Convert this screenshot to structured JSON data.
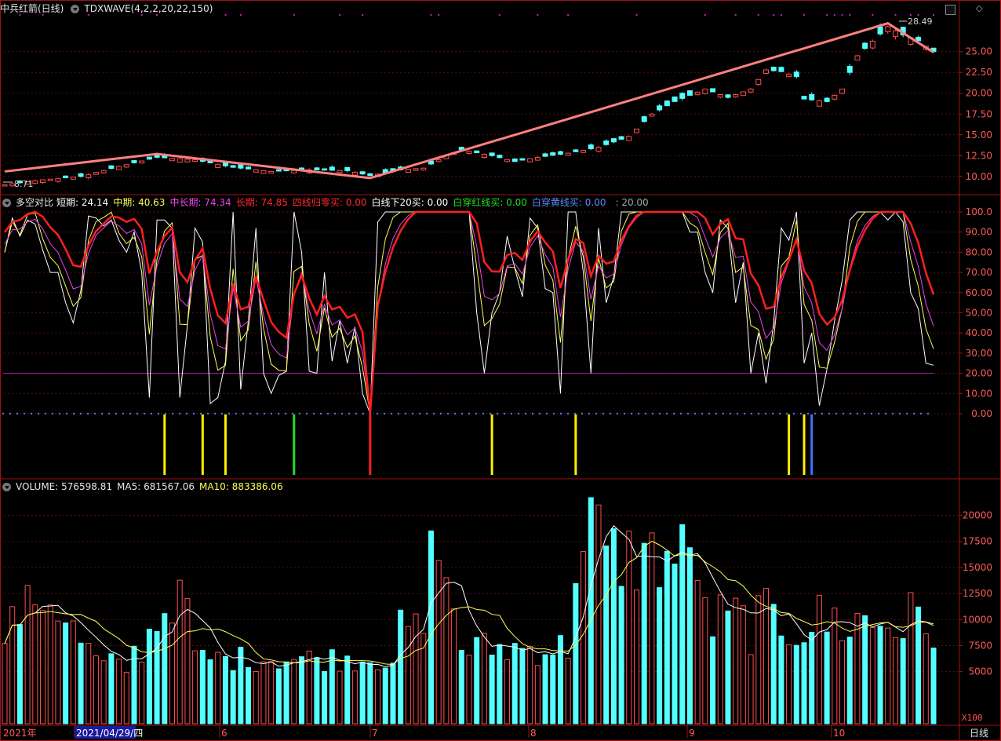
{
  "colors": {
    "bg": "#000000",
    "frame": "#a11212",
    "grid": "#5a0e0e",
    "up": "#ff4d4d",
    "down": "#54ffff",
    "zigzag": "#ff8080",
    "white_line": "#ffffff",
    "yellow_line": "#ffff55",
    "magenta_line": "#ee44ee",
    "red_line": "#ff1f1f",
    "guide_line": "#b01eb0",
    "dots": "#5577ff",
    "signal_yellow": "#ffee00",
    "signal_green": "#22dd22",
    "signal_red": "#ff2020",
    "signal_blue": "#3a78ff"
  },
  "price_panel": {
    "title": "中兵红箭(日线)",
    "indicator": "TDXWAVE(4,2,2,20,22,150)",
    "high_label": "28.49",
    "low_label": "8.71",
    "axis_ticks": [
      "25.00",
      "22.50",
      "20.00",
      "17.50",
      "15.00",
      "12.50",
      "10.00"
    ]
  },
  "osc_panel": {
    "title": "多空对比",
    "labels": [
      {
        "name": "短期",
        "value": "24.14",
        "color": "#ffffff"
      },
      {
        "name": "中期",
        "value": "40.63",
        "color": "#ffff55"
      },
      {
        "name": "中长期",
        "value": "74.34",
        "color": "#ee44ee"
      },
      {
        "name": "长期",
        "value": "74.85",
        "color": "#ff2a2a"
      },
      {
        "name": "四线归零买",
        "value": "0.00",
        "color": "#ff2a2a"
      },
      {
        "name": "白线下20买",
        "value": "0.00",
        "color": "#ffffff"
      },
      {
        "name": "白穿红线买",
        "value": "0.00",
        "color": "#22dd22"
      },
      {
        "name": "白穿黄线买",
        "value": "0.00",
        "color": "#5a8cff"
      }
    ],
    "extra": ": 20.00",
    "axis_ticks": [
      "100.0",
      "90.00",
      "80.00",
      "70.00",
      "60.00",
      "50.00",
      "40.00",
      "30.00",
      "20.00",
      "10.00",
      "0.00"
    ]
  },
  "vol_panel": {
    "title": "VOLUME",
    "volume": "576598.81",
    "ma5_label": "MA5",
    "ma5": "681567.06",
    "ma10_label": "MA10",
    "ma10": "883386.06",
    "axis_ticks": [
      "20000",
      "17500",
      "15000",
      "12500",
      "10000",
      "7500",
      "5000"
    ],
    "unit": "X100"
  },
  "x_axis": {
    "labels": [
      "2021年",
      "2021/04/29/四",
      "6",
      "7",
      "8",
      "9",
      "10"
    ],
    "period": "日线"
  },
  "chart_data": {
    "type": "candlestick",
    "bar_count": 123,
    "zigzag": [
      [
        0,
        10.6
      ],
      [
        20,
        12.7
      ],
      [
        48,
        9.8
      ],
      [
        116,
        28.4
      ],
      [
        122,
        24.9
      ]
    ],
    "price_guides": [
      [
        0,
        9.0,
        0
      ],
      [
        5,
        9.6,
        0
      ],
      [
        10,
        10.0,
        1
      ],
      [
        15,
        11.2,
        0
      ],
      [
        20,
        12.3,
        1
      ],
      [
        25,
        12.0,
        0
      ],
      [
        30,
        11.1,
        1
      ],
      [
        35,
        10.6,
        0
      ],
      [
        40,
        10.8,
        0
      ],
      [
        45,
        10.7,
        1
      ],
      [
        48,
        10.1,
        1
      ],
      [
        52,
        10.8,
        1
      ],
      [
        55,
        11.0,
        0
      ],
      [
        58,
        12.5,
        0
      ],
      [
        60,
        13.2,
        1
      ],
      [
        64,
        12.5,
        1
      ],
      [
        67,
        11.8,
        1
      ],
      [
        70,
        12.3,
        0
      ],
      [
        74,
        12.8,
        0
      ],
      [
        78,
        13.5,
        0
      ],
      [
        82,
        14.8,
        0
      ],
      [
        85,
        17.5,
        0
      ],
      [
        88,
        19.0,
        1
      ],
      [
        92,
        20.5,
        0
      ],
      [
        95,
        19.5,
        1
      ],
      [
        98,
        20.5,
        0
      ],
      [
        100,
        22.8,
        0
      ],
      [
        102,
        22.6,
        1
      ],
      [
        104,
        22.0,
        1
      ],
      [
        105,
        19.3,
        1
      ],
      [
        108,
        19.0,
        1
      ],
      [
        110,
        20.5,
        0
      ],
      [
        112,
        24.5,
        0
      ],
      [
        116,
        28.0,
        0
      ],
      [
        118,
        27.0,
        1
      ],
      [
        120,
        26.3,
        1
      ],
      [
        122,
        25.0,
        1
      ]
    ],
    "osc_short": [
      80,
      97,
      88,
      96,
      94,
      81,
      70,
      70,
      55,
      45,
      61,
      98,
      97,
      93,
      96,
      86,
      80,
      90,
      70,
      8,
      96,
      96,
      92,
      8,
      44,
      92,
      85,
      5,
      8,
      26,
      100,
      12,
      46,
      92,
      20,
      10,
      19,
      21,
      100,
      80,
      21,
      20,
      70,
      26,
      46,
      25,
      43,
      10,
      0,
      95,
      100,
      100,
      100,
      100,
      100,
      100,
      100,
      100,
      100,
      100,
      100,
      100,
      50,
      20,
      50,
      60,
      88,
      72,
      58,
      97,
      92,
      62,
      60,
      10,
      100,
      100,
      70,
      20,
      92,
      55,
      68,
      100,
      100,
      100,
      100,
      100,
      100,
      100,
      100,
      100,
      90,
      90,
      70,
      60,
      96,
      92,
      55,
      75,
      20,
      40,
      15,
      45,
      92,
      86,
      100,
      25,
      40,
      4,
      22,
      46,
      66,
      96,
      100,
      100,
      100,
      100,
      96,
      100,
      95,
      60,
      52,
      25,
      24
    ]
  }
}
